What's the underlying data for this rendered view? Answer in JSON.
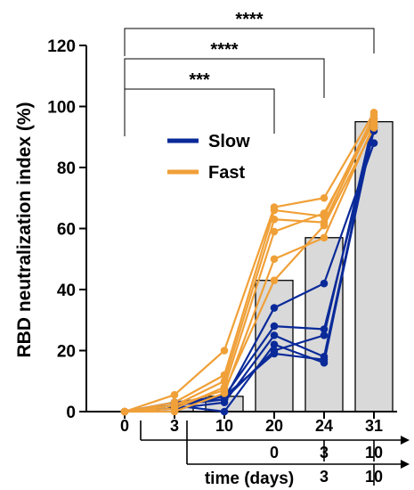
{
  "chart_data": {
    "type": "line",
    "ylabel": "RBD neutralization index (%)",
    "xlabel": "time (days)",
    "ylim": [
      0,
      120
    ],
    "yticks": [
      0,
      20,
      40,
      60,
      80,
      100,
      120
    ],
    "x_ticks": [
      "0",
      "3",
      "10",
      "20",
      "24",
      "31"
    ],
    "secondary_axes": [
      {
        "ticks": [
          "0",
          "3",
          "10"
        ],
        "starts_at": "20"
      },
      {
        "ticks": [
          "3",
          "10"
        ],
        "starts_at": "24"
      }
    ],
    "bars": [
      {
        "x": "0",
        "value": 0
      },
      {
        "x": "3",
        "value": 1.5
      },
      {
        "x": "10",
        "value": 5
      },
      {
        "x": "20",
        "value": 43
      },
      {
        "x": "24",
        "value": 57
      },
      {
        "x": "31",
        "value": 95
      }
    ],
    "groups": [
      {
        "name": "Slow",
        "color": "#0a2a99",
        "series": [
          [
            0,
            2,
            4,
            34,
            42,
            88
          ],
          [
            0,
            3,
            5,
            28,
            27,
            92
          ],
          [
            0,
            1,
            3,
            25,
            18,
            94
          ],
          [
            0,
            2,
            0,
            22,
            16,
            95
          ],
          [
            0,
            3,
            4,
            20,
            25,
            96
          ],
          [
            0,
            2,
            5,
            19,
            17,
            93
          ]
        ]
      },
      {
        "name": "Fast",
        "color": "#f0a038",
        "series": [
          [
            0,
            5.5,
            20,
            67,
            70,
            98
          ],
          [
            0,
            3,
            12,
            66,
            64,
            97
          ],
          [
            0,
            2,
            10,
            63,
            62,
            96
          ],
          [
            0,
            1,
            8,
            59,
            65,
            95
          ],
          [
            0,
            0,
            6,
            50,
            57,
            94
          ],
          [
            0,
            2,
            7,
            43,
            61,
            93
          ]
        ]
      }
    ],
    "significance": [
      {
        "from": "0",
        "to": "20",
        "label": "***"
      },
      {
        "from": "0",
        "to": "24",
        "label": "****"
      },
      {
        "from": "0",
        "to": "31",
        "label": "****"
      }
    ],
    "legend_position": "upper-left inside"
  }
}
